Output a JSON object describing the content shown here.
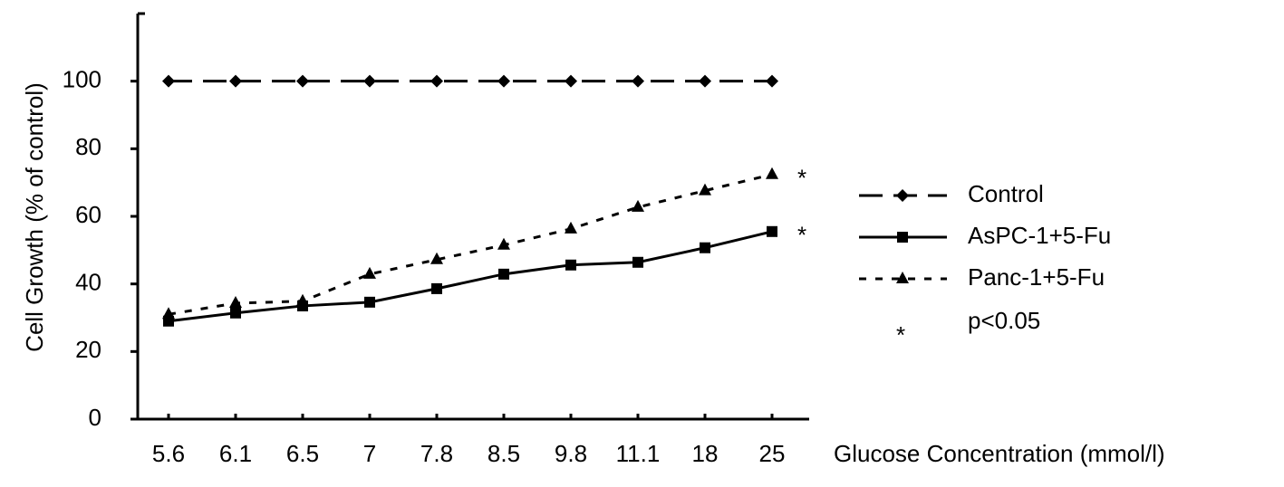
{
  "chart_data": {
    "type": "line",
    "y_label": "Cell Growth (% of control)",
    "x_label": "Glucose Concentration (mmol/l)",
    "categories": [
      "5.6",
      "6.1",
      "6.5",
      "7",
      "7.8",
      "8.5",
      "9.8",
      "11.1",
      "18",
      "25"
    ],
    "series": [
      {
        "name": "Control",
        "color": "#000000",
        "values": [
          100,
          100,
          100,
          100,
          100,
          100,
          100,
          100,
          100,
          100
        ]
      },
      {
        "name": "AsPC-1+5-Fu",
        "color": "#000000",
        "values": [
          29,
          31.4,
          33.5,
          34.6,
          38.6,
          42.9,
          45.6,
          46.4,
          50.7,
          55.5
        ]
      },
      {
        "name": "Panc-1+5-Fu",
        "color": "#000000",
        "values": [
          31,
          34.3,
          34.9,
          42.9,
          47.2,
          51.5,
          56.3,
          62.7,
          67.6,
          72.4
        ]
      }
    ],
    "annotations": [
      "*",
      "*"
    ],
    "significance_marker": "*",
    "significance_label": "p<0.05",
    "ylim": [
      0,
      120
    ],
    "yticks": [
      0,
      20,
      40,
      60,
      80,
      100
    ],
    "grid": false,
    "legend": "right"
  }
}
